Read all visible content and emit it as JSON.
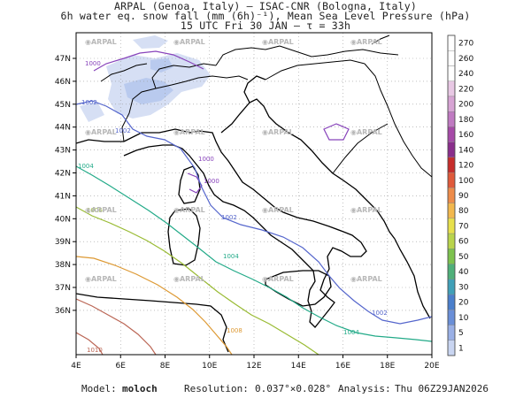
{
  "header": {
    "line1": "ARPAL (Genoa, Italy)  —  ISAC-CNR (Bologna, Italy)",
    "line2": "6h water eq. snow fall (mm (6h)⁻¹), Mean Sea Level Pressure (hPa)",
    "line3": "15 UTC Fri 30 JAN  —  τ = 33h"
  },
  "map": {
    "lon_labels": [
      "4E",
      "6E",
      "8E",
      "10E",
      "12E",
      "14E",
      "16E",
      "18E",
      "20E"
    ],
    "lat_labels": [
      "47N",
      "46N",
      "45N",
      "44N",
      "43N",
      "42N",
      "41N",
      "40N",
      "39N",
      "38N",
      "37N",
      "36N"
    ],
    "watermark": "ARPAL",
    "isobars": [
      {
        "value": "1000",
        "color": "#8844bb"
      },
      {
        "value": "1002",
        "color": "#5566cc"
      },
      {
        "value": "1004",
        "color": "#22aa88"
      },
      {
        "value": "1006",
        "color": "#99bb33"
      },
      {
        "value": "1008",
        "color": "#dd9933"
      },
      {
        "value": "1010",
        "color": "#bb6655"
      }
    ],
    "snow_colors": [
      "#d6dff4",
      "#b9caee"
    ]
  },
  "colorbar": {
    "labels": [
      "270",
      "260",
      "240",
      "220",
      "200",
      "180",
      "160",
      "140",
      "120",
      "100",
      "90",
      "80",
      "70",
      "60",
      "50",
      "40",
      "30",
      "20",
      "10",
      "5",
      "1"
    ],
    "colors": [
      "#ffffff",
      "#ffffff",
      "#ffffff",
      "#e8c8e4",
      "#d7a4d4",
      "#c07ac2",
      "#a64aa8",
      "#8a2e8c",
      "#c72d2b",
      "#e05a3a",
      "#ee8c4a",
      "#f2b84e",
      "#e7e04c",
      "#b9d44c",
      "#7dc24e",
      "#4fb07a",
      "#40a0b8",
      "#4a7fcc",
      "#6a8fd8",
      "#9ab0e6",
      "#c9d5f1"
    ]
  },
  "footer": {
    "model_label": "Model:",
    "model_value": "moloch",
    "resolution_label": "Resolution:",
    "resolution_value": "0.037°×0.028°",
    "analysis_label": "Analysis:",
    "analysis_value": "Thu 06Z29JAN2026"
  }
}
